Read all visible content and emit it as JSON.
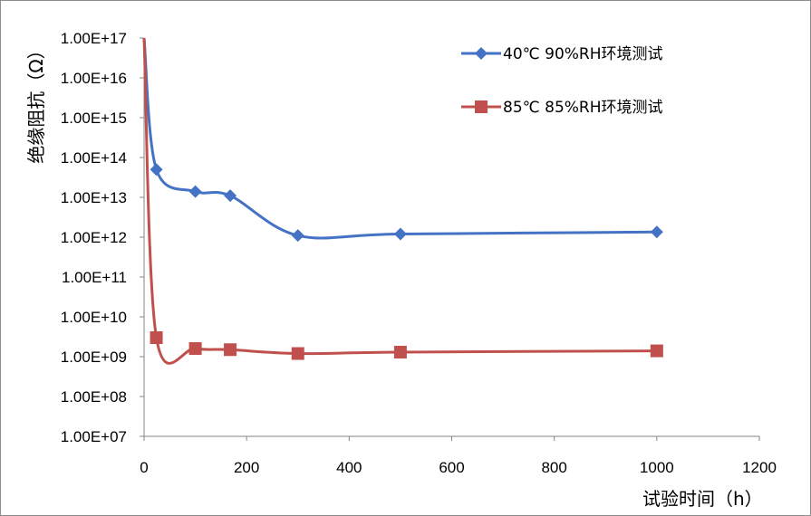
{
  "chart_data": {
    "type": "line",
    "title": "",
    "xlabel": "试验时间（h）",
    "ylabel": "绝缘阻抗（Ω）",
    "xlim": [
      0,
      1200
    ],
    "ylim": [
      10000000.0,
      1e+17
    ],
    "yscale": "log",
    "x_ticks": [
      "0",
      "200",
      "400",
      "600",
      "800",
      "1000",
      "1200"
    ],
    "y_ticks": [
      "1.00E+07",
      "1.00E+08",
      "1.00E+09",
      "1.00E+10",
      "1.00E+11",
      "1.00E+12",
      "1.00E+13",
      "1.00E+14",
      "1.00E+15",
      "1.00E+16",
      "1.00E+17"
    ],
    "legend_position": "top-right",
    "grid": false,
    "series": [
      {
        "name": "40℃ 90%RH环境测试",
        "color": "#4472C4",
        "marker": "diamond",
        "points": [
          {
            "x": 0,
            "y": 1e+17
          },
          {
            "x": 24,
            "y": 50000000000000.0
          },
          {
            "x": 100,
            "y": 14000000000000.0
          },
          {
            "x": 168,
            "y": 11000000000000.0
          },
          {
            "x": 300,
            "y": 1100000000000.0
          },
          {
            "x": 500,
            "y": 1200000000000.0
          },
          {
            "x": 1000,
            "y": 1350000000000.0
          }
        ]
      },
      {
        "name": "85℃ 85%RH环境测试",
        "color": "#C0504D",
        "marker": "square",
        "points": [
          {
            "x": 0,
            "y": 1e+17
          },
          {
            "x": 24,
            "y": 3000000000.0
          },
          {
            "x": 100,
            "y": 1600000000.0
          },
          {
            "x": 168,
            "y": 1500000000.0
          },
          {
            "x": 300,
            "y": 1200000000.0
          },
          {
            "x": 500,
            "y": 1300000000.0
          },
          {
            "x": 1000,
            "y": 1400000000.0
          }
        ]
      }
    ]
  }
}
